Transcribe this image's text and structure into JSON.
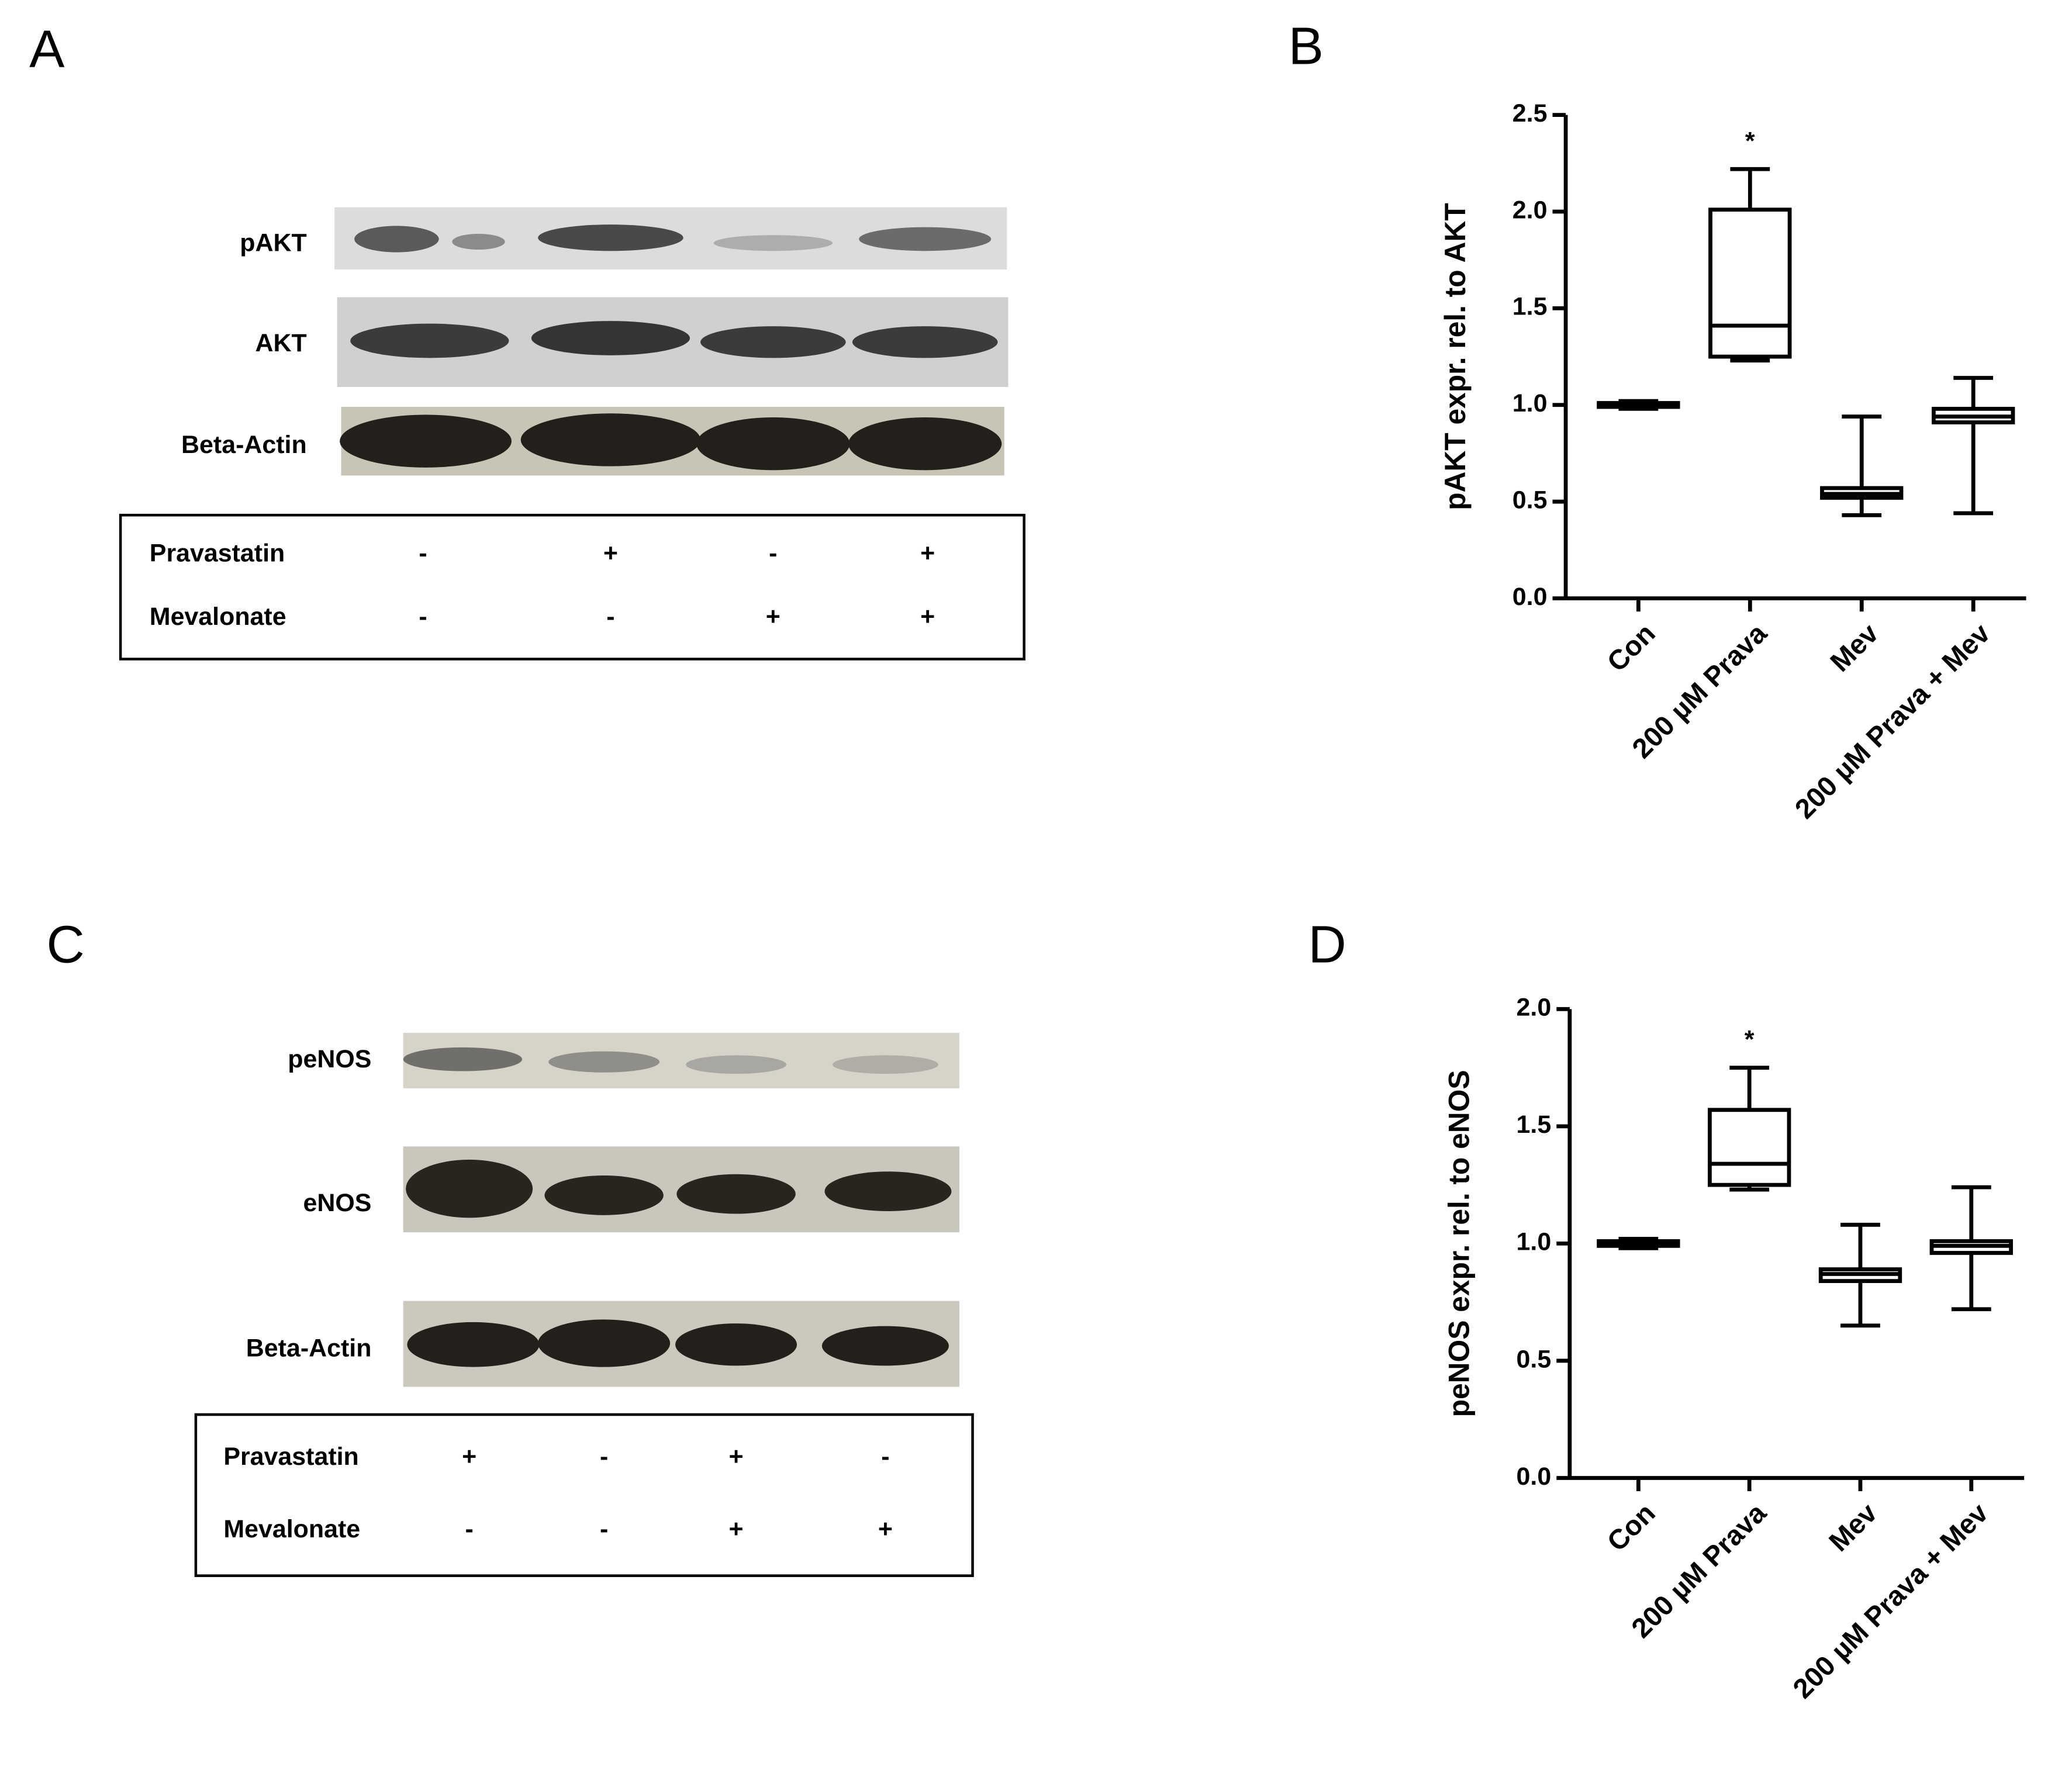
{
  "panel_labels": [
    "A",
    "B",
    "C",
    "D"
  ],
  "blots": [
    {
      "rows": [
        "pAKT",
        "AKT",
        "Beta-Actin"
      ],
      "treatments": [
        {
          "name": "Pravastatin",
          "signs": [
            "-",
            "+",
            "-",
            "+"
          ]
        },
        {
          "name": "Mevalonate",
          "signs": [
            "-",
            "-",
            "+",
            "+"
          ]
        }
      ]
    },
    {
      "rows": [
        "peNOS",
        "eNOS",
        "Beta-Actin"
      ],
      "treatments": [
        {
          "name": "Pravastatin",
          "signs": [
            "+",
            "-",
            "+",
            "-"
          ]
        },
        {
          "name": "Mevalonate",
          "signs": [
            "-",
            "-",
            "+",
            "+"
          ]
        }
      ]
    }
  ],
  "chart_data": [
    {
      "type": "box",
      "y_label": "pAKT expr. rel. to AKT",
      "annotation": "*",
      "color": "#000000",
      "categories": [
        "Con",
        "200 µM Prava",
        "Mev",
        "200 µM Prava + Mev"
      ],
      "boxes": [
        {
          "min": 0.98,
          "q1": 0.99,
          "median": 1.0,
          "q3": 1.01,
          "max": 1.02
        },
        {
          "min": 1.23,
          "q1": 1.25,
          "median": 1.41,
          "q3": 2.01,
          "max": 2.22
        },
        {
          "min": 0.43,
          "q1": 0.52,
          "median": 0.54,
          "q3": 0.57,
          "max": 0.94
        },
        {
          "min": 0.44,
          "q1": 0.91,
          "median": 0.94,
          "q3": 0.98,
          "max": 1.14
        }
      ],
      "ylim": [
        0,
        2.5
      ],
      "yticks": [
        {
          "value": 0,
          "label": "0.0"
        },
        0.5,
        {
          "value": 1,
          "label": "1.0"
        },
        1.5,
        {
          "value": 2,
          "label": "2.0"
        },
        2.5
      ]
    },
    {
      "type": "box",
      "y_label": "peNOS expr. rel. to eNOS",
      "annotation": "*",
      "color": "#000000",
      "categories": [
        "Con",
        "200 µM Prava",
        "Mev",
        "200 µM Prava + Mev"
      ],
      "boxes": [
        {
          "min": 0.98,
          "q1": 0.99,
          "median": 1.0,
          "q3": 1.01,
          "max": 1.02
        },
        {
          "min": 1.23,
          "q1": 1.25,
          "median": 1.34,
          "q3": 1.57,
          "max": 1.75
        },
        {
          "min": 0.65,
          "q1": 0.84,
          "median": 0.87,
          "q3": 0.89,
          "max": 1.08
        },
        {
          "min": 0.72,
          "q1": 0.96,
          "median": 0.99,
          "q3": 1.01,
          "max": 1.24
        }
      ],
      "ylim": [
        0,
        2
      ],
      "yticks": [
        {
          "value": 0,
          "label": "0.0"
        },
        0.5,
        {
          "value": 1,
          "label": "1.0"
        },
        1.5,
        {
          "value": 2,
          "label": "2.0"
        }
      ]
    }
  ]
}
